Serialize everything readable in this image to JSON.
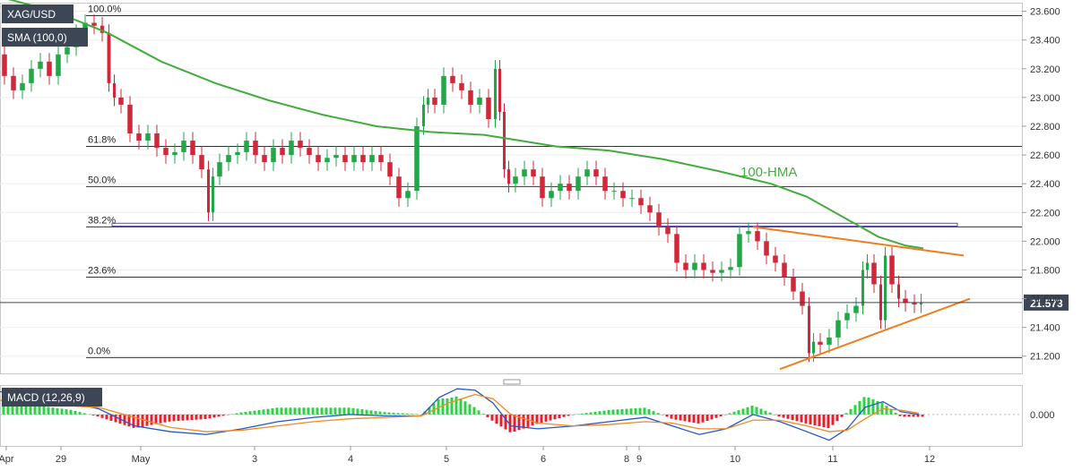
{
  "symbol": "XAG/USD",
  "indicator_label": "SMA (100,0)",
  "macd_label": "MACD (12,26,9)",
  "last_price_label": "21.573",
  "colors": {
    "up": "#22a647",
    "down": "#d0283a",
    "hma": "#41ad3b",
    "trend": "#f07d1e",
    "macd_line": "#2457c8",
    "signal_line": "#f08a26",
    "hist_pos": "#2ed045",
    "hist_neg": "#e5202b",
    "badge": "#3d4654",
    "support_band": "#5a4ec3"
  },
  "chart_data": {
    "type": "candlestick",
    "price_axis": {
      "ylim": [
        21.08,
        23.66
      ],
      "ticks": [
        "23.600",
        "23.400",
        "23.200",
        "23.000",
        "22.800",
        "22.600",
        "22.400",
        "22.200",
        "22.000",
        "21.800",
        "21.600",
        "21.400",
        "21.200"
      ]
    },
    "macd_axis": {
      "ylim": [
        -0.22,
        0.2
      ],
      "ticks": [
        "0.000"
      ]
    },
    "x_axis": {
      "labels": [
        "Apr",
        "29",
        "May",
        "3",
        "4",
        "5",
        "6",
        "8",
        "9",
        "10",
        "11",
        "12"
      ],
      "range": [
        0,
        1140
      ]
    },
    "fib_levels": [
      {
        "label": "100.0%",
        "price": 23.57
      },
      {
        "label": "61.8%",
        "price": 22.66
      },
      {
        "label": "50.0%",
        "price": 22.38
      },
      {
        "label": "38.2%",
        "price": 22.1
      },
      {
        "label": "23.6%",
        "price": 21.75
      },
      {
        "label": "0.0%",
        "price": 21.19
      }
    ],
    "last_price": 21.573,
    "support_band": [
      22.105,
      22.125
    ],
    "hma_label": "100-HMA",
    "hma": [
      [
        0,
        23.7
      ],
      [
        60,
        23.6
      ],
      [
        120,
        23.45
      ],
      [
        180,
        23.25
      ],
      [
        240,
        23.1
      ],
      [
        300,
        22.98
      ],
      [
        360,
        22.88
      ],
      [
        420,
        22.8
      ],
      [
        480,
        22.76
      ],
      [
        540,
        22.74
      ],
      [
        580,
        22.7
      ],
      [
        620,
        22.66
      ],
      [
        680,
        22.63
      ],
      [
        740,
        22.57
      ],
      [
        800,
        22.49
      ],
      [
        860,
        22.4
      ],
      [
        900,
        22.31
      ],
      [
        940,
        22.17
      ],
      [
        980,
        22.03
      ],
      [
        1010,
        21.97
      ],
      [
        1030,
        21.95
      ]
    ],
    "trend_upper": [
      [
        840,
        22.1
      ],
      [
        1075,
        21.9
      ]
    ],
    "trend_lower": [
      [
        870,
        21.11
      ],
      [
        1082,
        21.6
      ]
    ],
    "close_series": [
      [
        0,
        23.3
      ],
      [
        10,
        23.15
      ],
      [
        20,
        23.05
      ],
      [
        30,
        23.1
      ],
      [
        40,
        23.2
      ],
      [
        50,
        23.25
      ],
      [
        60,
        23.15
      ],
      [
        70,
        23.3
      ],
      [
        80,
        23.35
      ],
      [
        90,
        23.45
      ],
      [
        100,
        23.52
      ],
      [
        110,
        23.5
      ],
      [
        118,
        23.45
      ],
      [
        125,
        23.1
      ],
      [
        130,
        23.0
      ],
      [
        140,
        22.95
      ],
      [
        150,
        22.75
      ],
      [
        160,
        22.7
      ],
      [
        170,
        22.75
      ],
      [
        180,
        22.65
      ],
      [
        190,
        22.6
      ],
      [
        200,
        22.62
      ],
      [
        210,
        22.7
      ],
      [
        220,
        22.6
      ],
      [
        230,
        22.5
      ],
      [
        235,
        22.2
      ],
      [
        240,
        22.45
      ],
      [
        250,
        22.55
      ],
      [
        260,
        22.6
      ],
      [
        270,
        22.62
      ],
      [
        280,
        22.7
      ],
      [
        290,
        22.6
      ],
      [
        300,
        22.55
      ],
      [
        310,
        22.65
      ],
      [
        320,
        22.6
      ],
      [
        330,
        22.7
      ],
      [
        340,
        22.65
      ],
      [
        350,
        22.6
      ],
      [
        360,
        22.55
      ],
      [
        370,
        22.58
      ],
      [
        380,
        22.6
      ],
      [
        390,
        22.55
      ],
      [
        400,
        22.6
      ],
      [
        410,
        22.55
      ],
      [
        420,
        22.6
      ],
      [
        430,
        22.55
      ],
      [
        440,
        22.45
      ],
      [
        450,
        22.3
      ],
      [
        460,
        22.35
      ],
      [
        470,
        22.8
      ],
      [
        475,
        22.95
      ],
      [
        480,
        23.0
      ],
      [
        490,
        22.95
      ],
      [
        500,
        23.15
      ],
      [
        510,
        23.1
      ],
      [
        520,
        23.05
      ],
      [
        530,
        22.95
      ],
      [
        540,
        23.0
      ],
      [
        550,
        22.85
      ],
      [
        555,
        23.2
      ],
      [
        560,
        22.9
      ],
      [
        565,
        22.5
      ],
      [
        570,
        22.4
      ],
      [
        580,
        22.45
      ],
      [
        590,
        22.5
      ],
      [
        600,
        22.45
      ],
      [
        610,
        22.3
      ],
      [
        620,
        22.35
      ],
      [
        630,
        22.4
      ],
      [
        640,
        22.35
      ],
      [
        650,
        22.45
      ],
      [
        660,
        22.5
      ],
      [
        670,
        22.45
      ],
      [
        680,
        22.35
      ],
      [
        690,
        22.35
      ],
      [
        700,
        22.3
      ],
      [
        710,
        22.3
      ],
      [
        720,
        22.25
      ],
      [
        730,
        22.2
      ],
      [
        740,
        22.1
      ],
      [
        750,
        22.05
      ],
      [
        760,
        21.85
      ],
      [
        770,
        21.8
      ],
      [
        780,
        21.85
      ],
      [
        790,
        21.8
      ],
      [
        800,
        21.78
      ],
      [
        810,
        21.8
      ],
      [
        820,
        21.82
      ],
      [
        830,
        22.05
      ],
      [
        840,
        22.07
      ],
      [
        850,
        22.0
      ],
      [
        860,
        21.9
      ],
      [
        870,
        21.85
      ],
      [
        880,
        21.75
      ],
      [
        890,
        21.65
      ],
      [
        900,
        21.55
      ],
      [
        905,
        21.22
      ],
      [
        910,
        21.3
      ],
      [
        920,
        21.28
      ],
      [
        930,
        21.33
      ],
      [
        940,
        21.45
      ],
      [
        950,
        21.5
      ],
      [
        960,
        21.55
      ],
      [
        965,
        21.8
      ],
      [
        970,
        21.85
      ],
      [
        980,
        21.7
      ],
      [
        985,
        21.45
      ],
      [
        990,
        21.9
      ],
      [
        1000,
        21.7
      ],
      [
        1005,
        21.6
      ],
      [
        1015,
        21.57
      ],
      [
        1025,
        21.56
      ],
      [
        1030,
        21.573
      ]
    ],
    "macd_line": [
      [
        0,
        0.16
      ],
      [
        40,
        0.12
      ],
      [
        80,
        0.08
      ],
      [
        110,
        0.04
      ],
      [
        150,
        -0.08
      ],
      [
        190,
        -0.12
      ],
      [
        230,
        -0.14
      ],
      [
        270,
        -0.1
      ],
      [
        310,
        -0.05
      ],
      [
        350,
        -0.02
      ],
      [
        390,
        0.0
      ],
      [
        430,
        -0.01
      ],
      [
        470,
        -0.01
      ],
      [
        490,
        0.12
      ],
      [
        510,
        0.18
      ],
      [
        530,
        0.17
      ],
      [
        550,
        0.08
      ],
      [
        570,
        -0.08
      ],
      [
        600,
        -0.1
      ],
      [
        640,
        -0.08
      ],
      [
        680,
        -0.05
      ],
      [
        720,
        -0.02
      ],
      [
        750,
        -0.08
      ],
      [
        780,
        -0.14
      ],
      [
        810,
        -0.1
      ],
      [
        840,
        0.0
      ],
      [
        870,
        -0.05
      ],
      [
        900,
        -0.12
      ],
      [
        925,
        -0.18
      ],
      [
        945,
        -0.1
      ],
      [
        965,
        0.05
      ],
      [
        985,
        0.09
      ],
      [
        1005,
        0.02
      ],
      [
        1025,
        0.0
      ]
    ],
    "signal_line": [
      [
        0,
        0.1
      ],
      [
        40,
        0.08
      ],
      [
        80,
        0.06
      ],
      [
        110,
        0.05
      ],
      [
        150,
        -0.02
      ],
      [
        190,
        -0.09
      ],
      [
        230,
        -0.12
      ],
      [
        270,
        -0.11
      ],
      [
        310,
        -0.08
      ],
      [
        350,
        -0.05
      ],
      [
        390,
        -0.03
      ],
      [
        430,
        -0.02
      ],
      [
        470,
        -0.01
      ],
      [
        500,
        0.08
      ],
      [
        530,
        0.14
      ],
      [
        550,
        0.11
      ],
      [
        570,
        0.0
      ],
      [
        600,
        -0.06
      ],
      [
        640,
        -0.08
      ],
      [
        680,
        -0.07
      ],
      [
        720,
        -0.05
      ],
      [
        750,
        -0.06
      ],
      [
        780,
        -0.1
      ],
      [
        810,
        -0.1
      ],
      [
        840,
        -0.04
      ],
      [
        870,
        -0.04
      ],
      [
        900,
        -0.08
      ],
      [
        925,
        -0.12
      ],
      [
        945,
        -0.11
      ],
      [
        965,
        -0.03
      ],
      [
        985,
        0.04
      ],
      [
        1005,
        0.03
      ],
      [
        1025,
        0.01
      ]
    ]
  }
}
